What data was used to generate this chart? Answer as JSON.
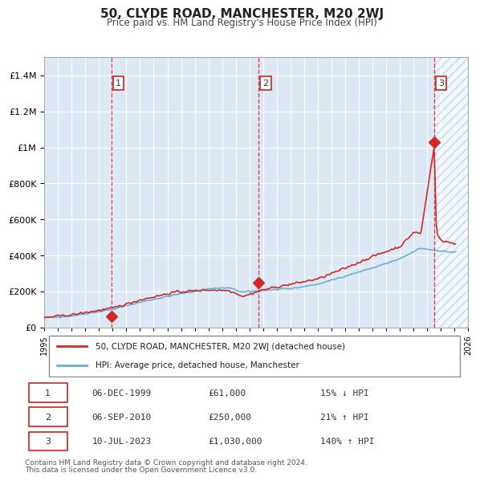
{
  "title": "50, CLYDE ROAD, MANCHESTER, M20 2WJ",
  "subtitle": "Price paid vs. HM Land Registry's House Price Index (HPI)",
  "legend_line1": "50, CLYDE ROAD, MANCHESTER, M20 2WJ (detached house)",
  "legend_line2": "HPI: Average price, detached house, Manchester",
  "table_rows": [
    [
      "1",
      "06-DEC-1999",
      "£61,000",
      "15% ↓ HPI"
    ],
    [
      "2",
      "06-SEP-2010",
      "£250,000",
      "21% ↑ HPI"
    ],
    [
      "3",
      "10-JUL-2023",
      "£1,030,000",
      "140% ↑ HPI"
    ]
  ],
  "footnote1": "Contains HM Land Registry data © Crown copyright and database right 2024.",
  "footnote2": "This data is licensed under the Open Government Licence v3.0.",
  "ylim": [
    0,
    1500000
  ],
  "yticks": [
    0,
    200000,
    400000,
    600000,
    800000,
    1000000,
    1200000,
    1400000
  ],
  "ytick_labels": [
    "£0",
    "£200K",
    "£400K",
    "£600K",
    "£800K",
    "£1M",
    "£1.2M",
    "£1.4M"
  ],
  "sale_dates": [
    1999.92,
    2010.68,
    2023.52
  ],
  "sale_prices": [
    61000,
    250000,
    1030000
  ],
  "hpi_color": "#6baed6",
  "price_color": "#d62728",
  "bg_color": "#dce9f5",
  "hatch_color": "#aec7d6",
  "grid_color": "#ffffff",
  "vline_color": "#d62728",
  "start_year": 1995,
  "end_year": 2026
}
